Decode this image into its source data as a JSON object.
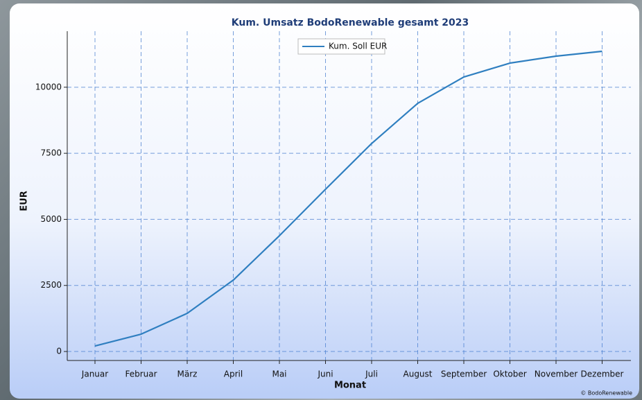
{
  "chart_data": {
    "type": "line",
    "title": "Kum. Umsatz BodoRenewable gesamt 2023",
    "x_label": "Monat",
    "y_label": "EUR",
    "footer": "© BodoRenewable",
    "categories": [
      "Januar",
      "Februar",
      "März",
      "April",
      "Mai",
      "Juni",
      "Juli",
      "August",
      "September",
      "Oktober",
      "November",
      "Dezember"
    ],
    "series": [
      {
        "name": "Kum. Soll EUR",
        "color": "#2f7fc0",
        "values": [
          210,
          656,
          1443,
          2702,
          4381,
          6139,
          7870,
          9391,
          10388,
          10913,
          11175,
          11359
        ]
      }
    ],
    "ylim": [
      -340,
      12120
    ],
    "yticks": [
      0,
      2500,
      5000,
      7500,
      10000
    ],
    "grid": true,
    "legend": "top"
  }
}
